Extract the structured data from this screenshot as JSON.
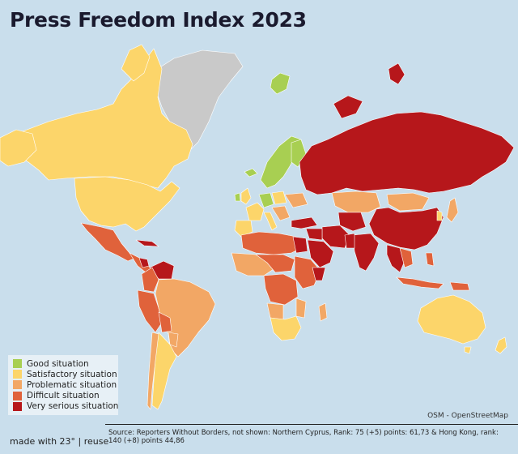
{
  "title": "Press Freedom Index 2023",
  "legend": [
    {
      "label": "Good situation",
      "color": "#a8cf52"
    },
    {
      "label": "Satisfactory situation",
      "color": "#fcd56a"
    },
    {
      "label": "Problematic situation",
      "color": "#f2a765"
    },
    {
      "label": "Difficult situation",
      "color": "#e0623b"
    },
    {
      "label": "Very serious situation",
      "color": "#b6171b"
    }
  ],
  "colors": {
    "ocean": "#c9deec",
    "no_data": "#c9c9c9"
  },
  "attribution": "OSM - OpenStreetMap",
  "source": "Source: Reporters Without Borders, not shown: Northern Cyprus, Rank: 75 (+5) points: 61,73 & Hong Kong, rank: 140 (+8) points 44,86",
  "credit": "made with 23° | reuse"
}
